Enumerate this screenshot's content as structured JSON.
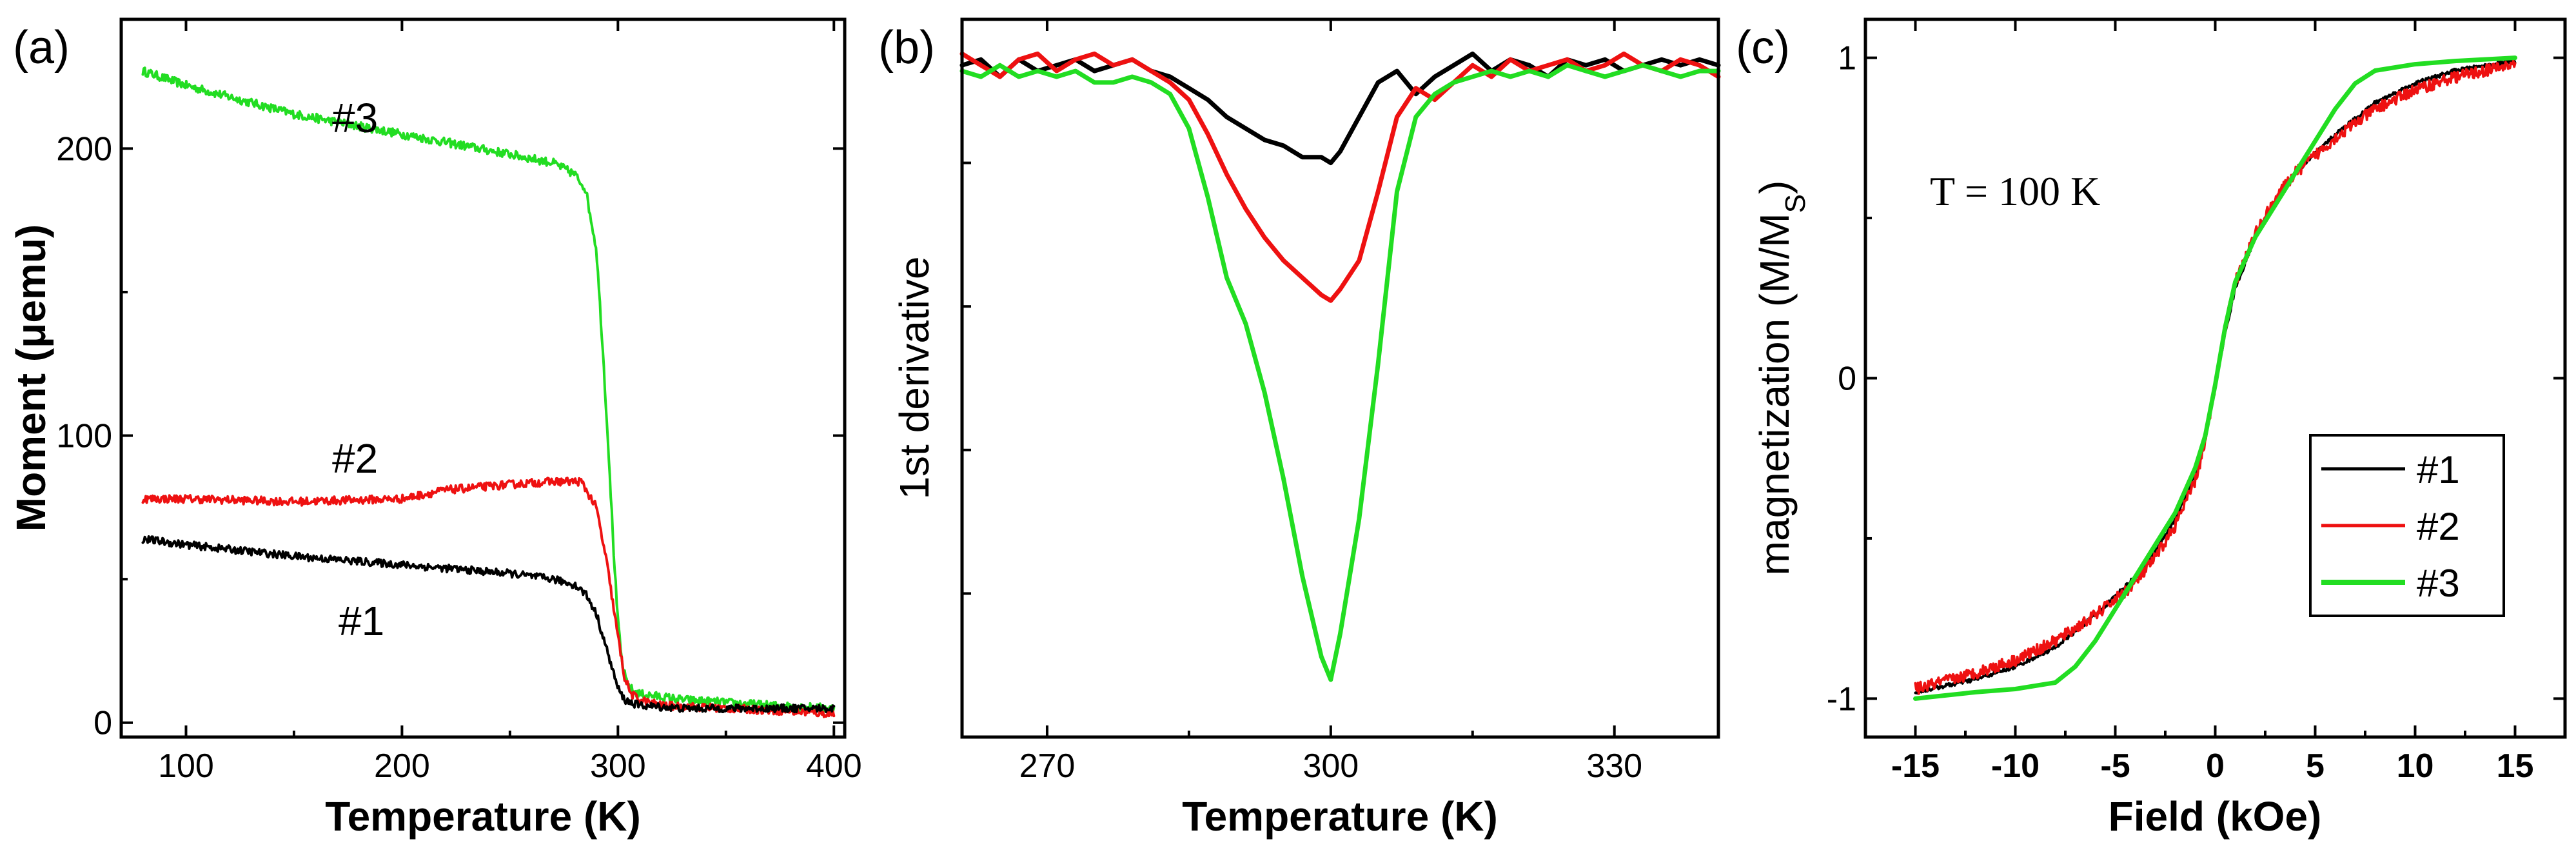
{
  "chart_data": [
    {
      "type": "line",
      "panel_label": "(a)",
      "xlabel": "Temperature (K)",
      "ylabel": "Moment (μemu)",
      "xlim": [
        70,
        405
      ],
      "ylim": [
        -5,
        245
      ],
      "xticks": [
        100,
        200,
        300,
        400
      ],
      "yticks": [
        0,
        100,
        200
      ],
      "series": [
        {
          "name": "#3",
          "color": "#22dd22",
          "noise": 1.5,
          "x": [
            80,
            100,
            150,
            200,
            250,
            270,
            280,
            285,
            290,
            293,
            296,
            298,
            300,
            302,
            304,
            307,
            310,
            330,
            350,
            370,
            400
          ],
          "y": [
            227,
            222,
            212,
            205,
            198,
            195,
            191,
            186,
            165,
            130,
            90,
            60,
            35,
            20,
            14,
            11,
            10,
            8,
            7,
            6,
            5
          ]
        },
        {
          "name": "#2",
          "color": "#ee1111",
          "noise": 1.4,
          "x": [
            80,
            100,
            150,
            200,
            220,
            250,
            270,
            283,
            290,
            295,
            300,
            303,
            306,
            310,
            320,
            350,
            380,
            400
          ],
          "y": [
            78,
            78,
            77,
            78,
            81,
            83,
            84,
            84,
            75,
            55,
            30,
            16,
            10,
            8,
            6,
            5,
            4,
            3
          ]
        },
        {
          "name": "#1",
          "color": "#000000",
          "noise": 1.3,
          "x": [
            80,
            100,
            150,
            200,
            250,
            270,
            280,
            285,
            290,
            295,
            300,
            303,
            306,
            310,
            330,
            350,
            380,
            400
          ],
          "y": [
            64,
            62,
            58,
            55,
            52,
            50,
            48,
            45,
            38,
            25,
            12,
            8,
            7,
            6,
            5,
            5,
            5,
            5
          ]
        }
      ],
      "annotations": [
        "#3",
        "#2",
        "#1"
      ]
    },
    {
      "type": "line",
      "panel_label": "(b)",
      "xlabel": "Temperature (K)",
      "ylabel": "1st derivative",
      "xlim": [
        261,
        341
      ],
      "ylim": [
        -1.2,
        0.05
      ],
      "xticks": [
        270,
        300,
        330
      ],
      "series": [
        {
          "name": "#1",
          "color": "#000000",
          "x": [
            261,
            263,
            265,
            267,
            269,
            271,
            273,
            275,
            277,
            279,
            281,
            283,
            285,
            287,
            289,
            291,
            293,
            295,
            297,
            299,
            300,
            301,
            303,
            305,
            307,
            309,
            311,
            313,
            315,
            317,
            319,
            321,
            323,
            325,
            327,
            329,
            331,
            333,
            335,
            337,
            339,
            341
          ],
          "y": [
            -0.03,
            -0.02,
            -0.05,
            -0.02,
            -0.04,
            -0.03,
            -0.02,
            -0.04,
            -0.03,
            -0.02,
            -0.04,
            -0.05,
            -0.07,
            -0.09,
            -0.12,
            -0.14,
            -0.16,
            -0.17,
            -0.19,
            -0.19,
            -0.2,
            -0.18,
            -0.12,
            -0.06,
            -0.04,
            -0.08,
            -0.05,
            -0.03,
            -0.01,
            -0.04,
            -0.02,
            -0.03,
            -0.05,
            -0.02,
            -0.03,
            -0.02,
            -0.04,
            -0.03,
            -0.02,
            -0.03,
            -0.02,
            -0.03
          ]
        },
        {
          "name": "#2",
          "color": "#ee1111",
          "x": [
            261,
            263,
            265,
            267,
            269,
            271,
            273,
            275,
            277,
            279,
            281,
            283,
            285,
            287,
            289,
            291,
            293,
            295,
            297,
            299,
            300,
            301,
            303,
            305,
            307,
            309,
            311,
            313,
            315,
            317,
            319,
            321,
            323,
            325,
            327,
            329,
            331,
            333,
            335,
            337,
            339,
            341
          ],
          "y": [
            -0.01,
            -0.03,
            -0.05,
            -0.02,
            -0.01,
            -0.04,
            -0.02,
            -0.01,
            -0.03,
            -0.02,
            -0.04,
            -0.06,
            -0.09,
            -0.15,
            -0.22,
            -0.28,
            -0.33,
            -0.37,
            -0.4,
            -0.43,
            -0.44,
            -0.42,
            -0.37,
            -0.25,
            -0.12,
            -0.07,
            -0.09,
            -0.06,
            -0.03,
            -0.05,
            -0.02,
            -0.04,
            -0.03,
            -0.02,
            -0.04,
            -0.03,
            -0.01,
            -0.03,
            -0.04,
            -0.02,
            -0.03,
            -0.05
          ]
        },
        {
          "name": "#3",
          "color": "#22dd22",
          "x": [
            261,
            263,
            265,
            267,
            269,
            271,
            273,
            275,
            277,
            279,
            281,
            283,
            285,
            287,
            289,
            291,
            293,
            295,
            297,
            299,
            300,
            301,
            303,
            305,
            307,
            309,
            311,
            313,
            315,
            317,
            319,
            321,
            323,
            325,
            327,
            329,
            331,
            333,
            335,
            337,
            339,
            341
          ],
          "y": [
            -0.04,
            -0.05,
            -0.03,
            -0.05,
            -0.04,
            -0.05,
            -0.04,
            -0.06,
            -0.06,
            -0.05,
            -0.06,
            -0.08,
            -0.14,
            -0.26,
            -0.4,
            -0.48,
            -0.6,
            -0.75,
            -0.92,
            -1.06,
            -1.1,
            -1.02,
            -0.82,
            -0.55,
            -0.25,
            -0.12,
            -0.08,
            -0.06,
            -0.05,
            -0.04,
            -0.05,
            -0.04,
            -0.05,
            -0.03,
            -0.04,
            -0.05,
            -0.04,
            -0.03,
            -0.04,
            -0.05,
            -0.04,
            -0.04
          ]
        }
      ]
    },
    {
      "type": "line",
      "panel_label": "(c)",
      "xlabel": "Field (kOe)",
      "ylabel": "magnetization (M/M",
      "ylabel_sub": "S",
      "ylabel_end": ")",
      "xlim": [
        -17.5,
        17.5
      ],
      "ylim": [
        -1.12,
        1.12
      ],
      "xticks": [
        -15,
        -10,
        -5,
        0,
        5,
        10,
        15
      ],
      "yticks": [
        -1,
        0,
        1
      ],
      "annotation": "T = 100 K",
      "legend": [
        "#1",
        "#2",
        "#3"
      ],
      "series": [
        {
          "name": "#1",
          "color": "#000000",
          "noise": 0.006,
          "x": [
            -15,
            -12,
            -10,
            -8,
            -6,
            -4,
            -3,
            -2,
            -1,
            -0.5,
            0,
            0.5,
            1,
            2,
            3,
            4,
            6,
            8,
            10,
            12,
            15
          ],
          "y": [
            -0.98,
            -0.94,
            -0.9,
            -0.84,
            -0.74,
            -0.62,
            -0.54,
            -0.44,
            -0.3,
            -0.18,
            -0.02,
            0.14,
            0.28,
            0.44,
            0.55,
            0.64,
            0.76,
            0.86,
            0.92,
            0.96,
            0.99
          ]
        },
        {
          "name": "#2",
          "color": "#ee1111",
          "noise": 0.018,
          "x": [
            -15,
            -12,
            -10,
            -8,
            -6,
            -4,
            -3,
            -2,
            -1,
            -0.5,
            0,
            0.5,
            1,
            2,
            3,
            4,
            6,
            8,
            10,
            12,
            15
          ],
          "y": [
            -0.97,
            -0.92,
            -0.88,
            -0.82,
            -0.74,
            -0.64,
            -0.56,
            -0.46,
            -0.32,
            -0.2,
            -0.02,
            0.16,
            0.3,
            0.45,
            0.56,
            0.64,
            0.75,
            0.84,
            0.9,
            0.94,
            0.98
          ]
        },
        {
          "name": "#3",
          "color": "#22dd22",
          "noise": 0,
          "x": [
            -15,
            -12,
            -10,
            -8,
            -7,
            -6,
            -5,
            -4,
            -3,
            -2,
            -1,
            -0.5,
            0,
            0.5,
            1,
            2,
            3,
            4,
            5,
            6,
            7,
            8,
            10,
            12,
            15
          ],
          "y": [
            -1.0,
            -0.98,
            -0.97,
            -0.95,
            -0.9,
            -0.82,
            -0.72,
            -0.62,
            -0.52,
            -0.42,
            -0.28,
            -0.18,
            -0.02,
            0.16,
            0.3,
            0.44,
            0.54,
            0.64,
            0.74,
            0.84,
            0.92,
            0.96,
            0.98,
            0.99,
            1.0
          ]
        }
      ]
    }
  ]
}
